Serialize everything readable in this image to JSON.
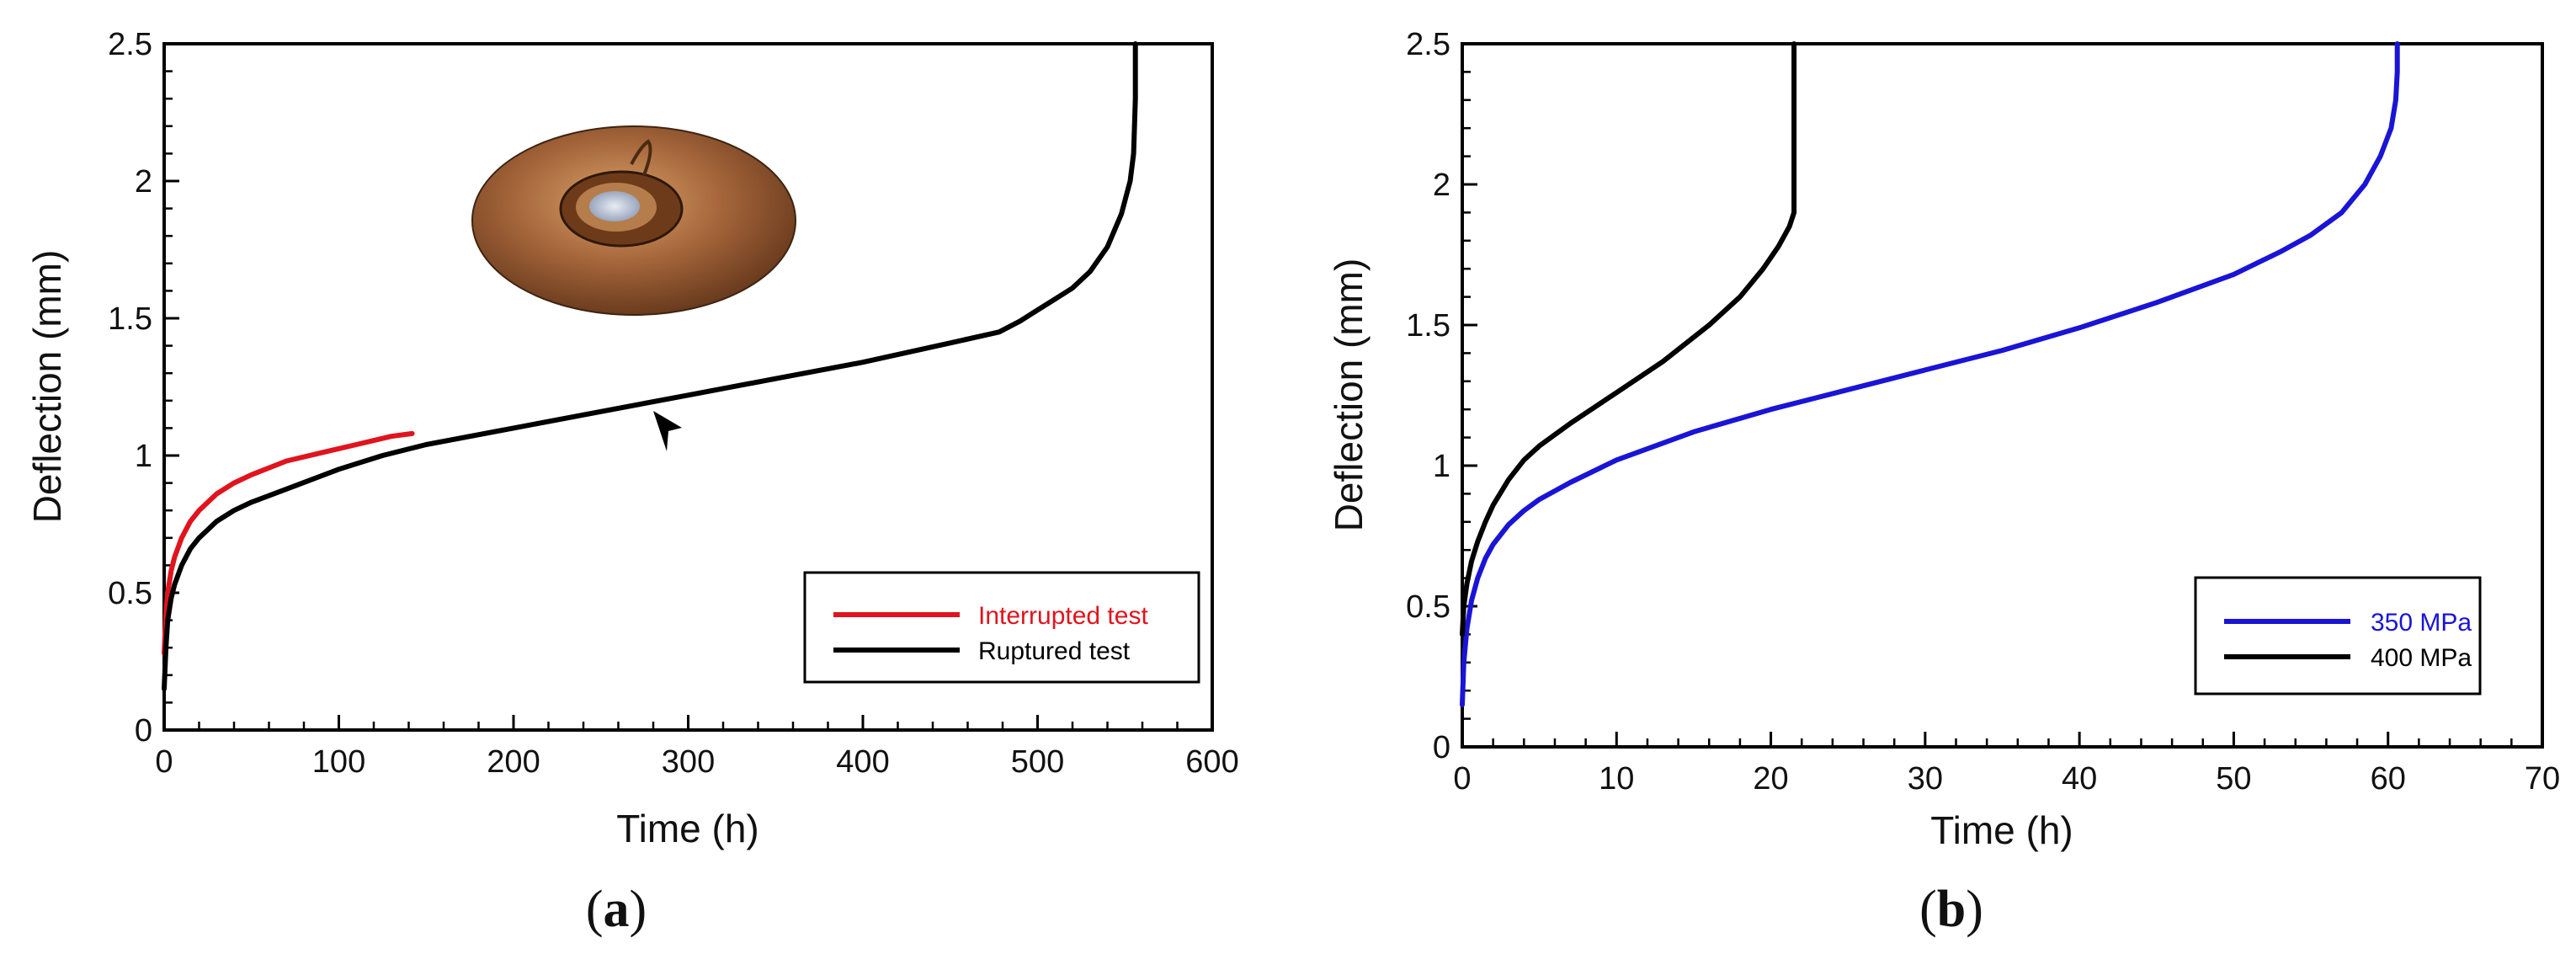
{
  "chart_data": [
    {
      "type": "line",
      "panel_label": "a",
      "xlabel": "Time (h)",
      "ylabel": "Deflection (mm)",
      "xlim": [
        0,
        600
      ],
      "ylim": [
        0,
        2.5
      ],
      "xticks": [
        0,
        100,
        200,
        300,
        400,
        500,
        600
      ],
      "yticks": [
        0,
        0.5,
        1,
        1.5,
        2,
        2.5
      ],
      "xtick_labels": [
        "0",
        "100",
        "200",
        "300",
        "400",
        "500",
        "600"
      ],
      "ytick_labels": [
        "0",
        "0.5",
        "1",
        "1.5",
        "2",
        "2.5"
      ],
      "legend_position": "bottom-right",
      "annotations": [
        "arrow pointing at ruptured curve near t = 280 h",
        "photo inset of ruptured disc specimen"
      ],
      "series": [
        {
          "name": "Interrupted test",
          "color": "#e0141e",
          "x": [
            0,
            1,
            2,
            4,
            6,
            10,
            15,
            20,
            30,
            40,
            50,
            70,
            90,
            110,
            130,
            142
          ],
          "y": [
            0.28,
            0.42,
            0.5,
            0.58,
            0.63,
            0.7,
            0.76,
            0.8,
            0.86,
            0.9,
            0.93,
            0.98,
            1.01,
            1.04,
            1.07,
            1.08
          ]
        },
        {
          "name": "Ruptured test",
          "color": "#000000",
          "x": [
            0,
            1,
            2,
            4,
            6,
            10,
            15,
            20,
            30,
            40,
            50,
            75,
            100,
            125,
            150,
            200,
            250,
            300,
            350,
            400,
            450,
            478,
            490,
            500,
            510,
            520,
            530,
            540,
            548,
            553,
            555,
            556,
            556
          ],
          "y": [
            0.15,
            0.3,
            0.4,
            0.48,
            0.53,
            0.6,
            0.66,
            0.7,
            0.76,
            0.8,
            0.83,
            0.89,
            0.95,
            1.0,
            1.04,
            1.1,
            1.16,
            1.22,
            1.28,
            1.34,
            1.41,
            1.45,
            1.49,
            1.53,
            1.57,
            1.61,
            1.67,
            1.76,
            1.88,
            2.0,
            2.1,
            2.3,
            2.5
          ]
        }
      ]
    },
    {
      "type": "line",
      "panel_label": "b",
      "xlabel": "Time (h)",
      "ylabel": "Deflection (mm)",
      "xlim": [
        0,
        70
      ],
      "ylim": [
        0,
        2.5
      ],
      "xticks": [
        0,
        10,
        20,
        30,
        40,
        50,
        60,
        70
      ],
      "yticks": [
        0,
        0.5,
        1,
        1.5,
        2,
        2.5
      ],
      "xtick_labels": [
        "0",
        "10",
        "20",
        "30",
        "40",
        "50",
        "60",
        "70"
      ],
      "ytick_labels": [
        "0",
        "0.5",
        "1",
        "1.5",
        "2",
        "2.5"
      ],
      "legend_position": "bottom-right",
      "series": [
        {
          "name": "350 MPa",
          "color": "#1a14d6",
          "x": [
            0,
            0.1,
            0.3,
            0.6,
            1,
            1.5,
            2,
            3,
            4,
            5,
            7,
            10,
            15,
            20,
            25,
            30,
            35,
            40,
            45,
            50,
            53,
            55,
            57,
            58.5,
            59.5,
            60.2,
            60.5,
            60.6,
            60.6
          ],
          "y": [
            0.15,
            0.3,
            0.42,
            0.52,
            0.6,
            0.67,
            0.72,
            0.79,
            0.84,
            0.88,
            0.94,
            1.02,
            1.12,
            1.2,
            1.27,
            1.34,
            1.41,
            1.49,
            1.58,
            1.68,
            1.76,
            1.82,
            1.9,
            2.0,
            2.1,
            2.2,
            2.3,
            2.4,
            2.5
          ]
        },
        {
          "name": "400 MPa",
          "color": "#000000",
          "x": [
            0,
            0.1,
            0.3,
            0.6,
            1,
            1.5,
            2,
            3,
            4,
            5,
            7,
            10,
            13,
            16,
            18,
            19.5,
            20.5,
            21.2,
            21.5,
            21.5,
            21.5
          ],
          "y": [
            0.4,
            0.5,
            0.58,
            0.66,
            0.73,
            0.8,
            0.86,
            0.95,
            1.02,
            1.07,
            1.15,
            1.26,
            1.37,
            1.5,
            1.6,
            1.7,
            1.78,
            1.85,
            1.9,
            2.2,
            2.5
          ]
        }
      ]
    }
  ]
}
